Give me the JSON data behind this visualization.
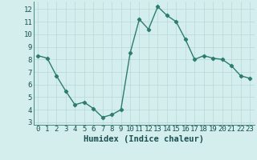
{
  "x": [
    0,
    1,
    2,
    3,
    4,
    5,
    6,
    7,
    8,
    9,
    10,
    11,
    12,
    13,
    14,
    15,
    16,
    17,
    18,
    19,
    20,
    21,
    22,
    23
  ],
  "y": [
    8.3,
    8.1,
    6.7,
    5.5,
    4.4,
    4.6,
    4.1,
    3.4,
    3.6,
    4.0,
    8.5,
    11.2,
    10.4,
    12.2,
    11.5,
    11.0,
    9.6,
    8.0,
    8.3,
    8.1,
    8.0,
    7.5,
    6.7,
    6.5
  ],
  "line_color": "#2d7d6e",
  "marker": "D",
  "marker_size": 2.2,
  "bg_color": "#d4eeee",
  "grid_color": "#b8d8d8",
  "xlabel": "Humidex (Indice chaleur)",
  "xlim": [
    -0.5,
    23.5
  ],
  "ylim": [
    2.8,
    12.6
  ],
  "yticks": [
    3,
    4,
    5,
    6,
    7,
    8,
    9,
    10,
    11,
    12
  ],
  "xticks": [
    0,
    1,
    2,
    3,
    4,
    5,
    6,
    7,
    8,
    9,
    10,
    11,
    12,
    13,
    14,
    15,
    16,
    17,
    18,
    19,
    20,
    21,
    22,
    23
  ],
  "xlabel_fontsize": 7.5,
  "tick_fontsize": 6.5,
  "line_width": 1.0
}
